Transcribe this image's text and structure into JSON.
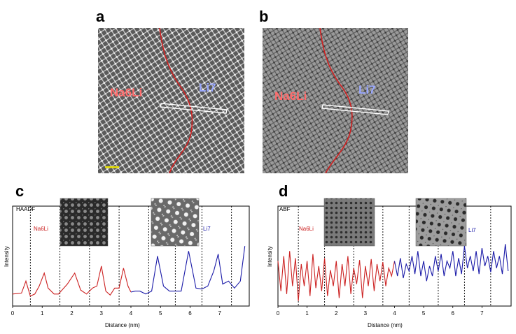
{
  "panels": {
    "a": {
      "letter": "a",
      "left_label": "Na6Li",
      "right_label": "Li7"
    },
    "b": {
      "letter": "b",
      "left_label": "Na6Li",
      "right_label": "Li7"
    },
    "c": {
      "letter": "c",
      "detector": "HAADF",
      "left_label": "Na6Li",
      "right_label": "Li7"
    },
    "d": {
      "letter": "d",
      "detector": "ABF",
      "left_label": "Na6Li",
      "right_label": "Li7"
    }
  },
  "colors": {
    "na6li": "#cc2222",
    "li7": "#1a1aa8",
    "label_na6li": "#ff6b6b",
    "label_li7": "#9aa8ff",
    "scale_bar": "#e8e000"
  },
  "chart_data": [
    {
      "type": "line",
      "panel": "c",
      "title": "",
      "xlabel": "Distance (nm)",
      "ylabel": "Intensity",
      "xlim": [
        0,
        8
      ],
      "xticks": [
        0,
        1,
        2,
        3,
        4,
        5,
        6,
        7
      ],
      "grid": false,
      "legend": "none",
      "annotations": [
        "HAADF",
        "Na6Li",
        "Li7"
      ],
      "dashed_lines_x": [
        0.6,
        1.6,
        2.6,
        3.6,
        4.6,
        5.5,
        6.4,
        7.4
      ],
      "series": [
        {
          "color": "#cc2222",
          "x": [
            0,
            0.3,
            0.45,
            0.6,
            0.75,
            0.9,
            1.07,
            1.2,
            1.4,
            1.55,
            1.7,
            1.85,
            2.1,
            2.3,
            2.5,
            2.7,
            2.85,
            3.0,
            3.15,
            3.3,
            3.45,
            3.6,
            3.75,
            3.9,
            4.0
          ],
          "y": [
            0.12,
            0.13,
            0.25,
            0.1,
            0.12,
            0.2,
            0.33,
            0.18,
            0.12,
            0.12,
            0.17,
            0.22,
            0.33,
            0.16,
            0.12,
            0.18,
            0.2,
            0.4,
            0.15,
            0.11,
            0.18,
            0.18,
            0.38,
            0.2,
            0.14
          ]
        },
        {
          "color": "#1a1aa8",
          "x": [
            4.0,
            4.15,
            4.3,
            4.5,
            4.7,
            4.9,
            5.1,
            5.3,
            5.5,
            5.7,
            5.95,
            6.2,
            6.4,
            6.6,
            6.8,
            6.95,
            7.1,
            7.3,
            7.5,
            7.7,
            7.85
          ],
          "y": [
            0.14,
            0.15,
            0.15,
            0.12,
            0.15,
            0.5,
            0.2,
            0.15,
            0.15,
            0.15,
            0.55,
            0.18,
            0.17,
            0.2,
            0.35,
            0.52,
            0.22,
            0.25,
            0.18,
            0.25,
            0.6
          ]
        }
      ]
    },
    {
      "type": "line",
      "panel": "d",
      "title": "",
      "xlabel": "Distance (nm)",
      "ylabel": "Intensity",
      "xlim": [
        0,
        8
      ],
      "xticks": [
        0,
        1,
        2,
        3,
        4,
        5,
        6,
        7
      ],
      "grid": false,
      "legend": "none",
      "annotations": [
        "ABF",
        "Na6Li",
        "Li7"
      ],
      "dashed_lines_x": [
        0.7,
        1.6,
        2.6,
        3.6,
        4.5,
        5.5,
        6.4,
        7.3
      ],
      "series": [
        {
          "color": "#cc2222",
          "x": [
            0,
            0.1,
            0.2,
            0.3,
            0.4,
            0.5,
            0.6,
            0.7,
            0.8,
            0.9,
            1.0,
            1.1,
            1.2,
            1.3,
            1.4,
            1.5,
            1.6,
            1.7,
            1.8,
            1.9,
            2.0,
            2.1,
            2.2,
            2.3,
            2.4,
            2.5,
            2.6,
            2.7,
            2.8,
            2.9,
            3.0,
            3.1,
            3.2,
            3.3,
            3.4,
            3.5,
            3.6,
            3.7,
            3.8,
            3.9,
            4.0
          ],
          "y": [
            0.45,
            0.15,
            0.5,
            0.12,
            0.55,
            0.2,
            0.48,
            0.05,
            0.42,
            0.2,
            0.45,
            0.1,
            0.52,
            0.18,
            0.4,
            0.15,
            0.48,
            0.1,
            0.36,
            0.2,
            0.45,
            0.08,
            0.42,
            0.2,
            0.5,
            0.12,
            0.38,
            0.22,
            0.46,
            0.08,
            0.4,
            0.2,
            0.47,
            0.15,
            0.42,
            0.25,
            0.44,
            0.2,
            0.38,
            0.3,
            0.45
          ]
        },
        {
          "color": "#1a1aa8",
          "x": [
            4.0,
            4.1,
            4.2,
            4.3,
            4.4,
            4.5,
            4.6,
            4.7,
            4.8,
            4.9,
            5.0,
            5.1,
            5.2,
            5.3,
            5.4,
            5.5,
            5.6,
            5.7,
            5.8,
            5.9,
            6.0,
            6.1,
            6.2,
            6.3,
            6.4,
            6.5,
            6.6,
            6.7,
            6.8,
            6.9,
            7.0,
            7.1,
            7.2,
            7.3,
            7.4,
            7.5,
            7.6,
            7.7,
            7.8,
            7.9
          ],
          "y": [
            0.45,
            0.3,
            0.48,
            0.28,
            0.42,
            0.35,
            0.5,
            0.32,
            0.55,
            0.3,
            0.45,
            0.25,
            0.4,
            0.3,
            0.5,
            0.35,
            0.52,
            0.3,
            0.45,
            0.38,
            0.55,
            0.3,
            0.48,
            0.32,
            0.6,
            0.38,
            0.5,
            0.35,
            0.55,
            0.32,
            0.58,
            0.4,
            0.5,
            0.34,
            0.55,
            0.38,
            0.5,
            0.32,
            0.62,
            0.35
          ]
        }
      ]
    }
  ]
}
